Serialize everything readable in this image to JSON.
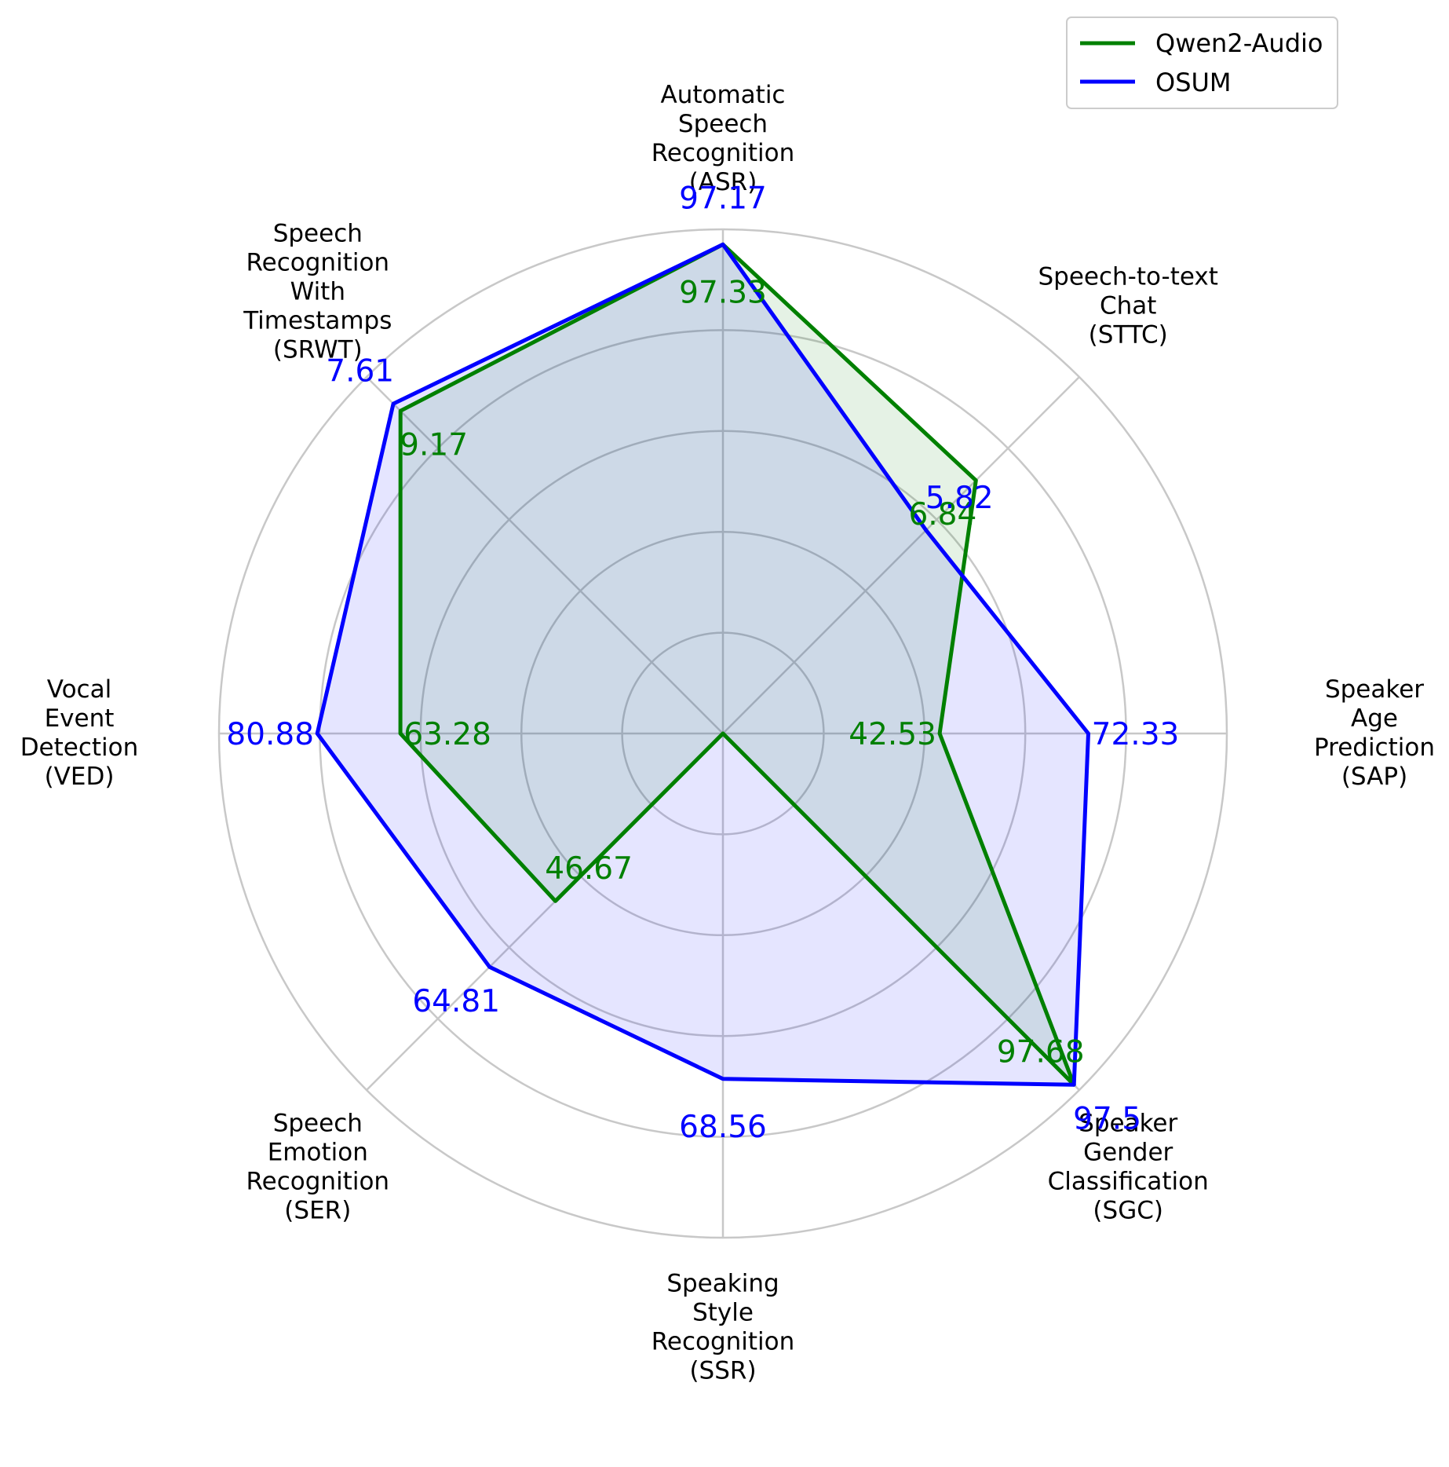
{
  "chart_data": {
    "type": "radar",
    "axes": [
      {
        "lines": [
          "Automatic",
          "Speech",
          "Recognition",
          "(ASR)"
        ]
      },
      {
        "lines": [
          "Speech-to-text",
          "Chat",
          "(STTC)"
        ]
      },
      {
        "lines": [
          "Speaker",
          "Age",
          "Prediction",
          "(SAP)"
        ]
      },
      {
        "lines": [
          "Speaker",
          "Gender",
          "Classification",
          "(SGC)"
        ]
      },
      {
        "lines": [
          "Speaking",
          "Style",
          "Recognition",
          "(SSR)"
        ]
      },
      {
        "lines": [
          "Speech",
          "Emotion",
          "Recognition",
          "(SER)"
        ]
      },
      {
        "lines": [
          "Vocal",
          "Event",
          "Detection",
          "(VED)"
        ]
      },
      {
        "lines": [
          "Speech",
          "Recognition",
          "With",
          "Timestamps",
          "(SRWT)"
        ]
      }
    ],
    "series": [
      {
        "name": "Qwen2-Audio",
        "color": "#008000",
        "fill": "#008000",
        "fill_opacity": 0.1,
        "labels": [
          "97.33",
          "6.84",
          "42.53",
          "97.68",
          "",
          "46.67",
          "63.28",
          "9.17"
        ],
        "radius_fraction": [
          0.97,
          0.71,
          0.43,
          0.985,
          0.0,
          0.47,
          0.64,
          0.905
        ]
      },
      {
        "name": "OSUM",
        "color": "#0000ff",
        "fill": "#0000ff",
        "fill_opacity": 0.1,
        "labels": [
          "97.17",
          "5.82",
          "72.33",
          "97.5",
          "68.56",
          "64.81",
          "80.88",
          "7.61"
        ],
        "radius_fraction": [
          0.97,
          0.57,
          0.725,
          0.985,
          0.685,
          0.655,
          0.805,
          0.925
        ]
      }
    ],
    "radial_grid": {
      "rings": 5,
      "grid": true
    },
    "legend": {
      "position": "top-right"
    }
  }
}
